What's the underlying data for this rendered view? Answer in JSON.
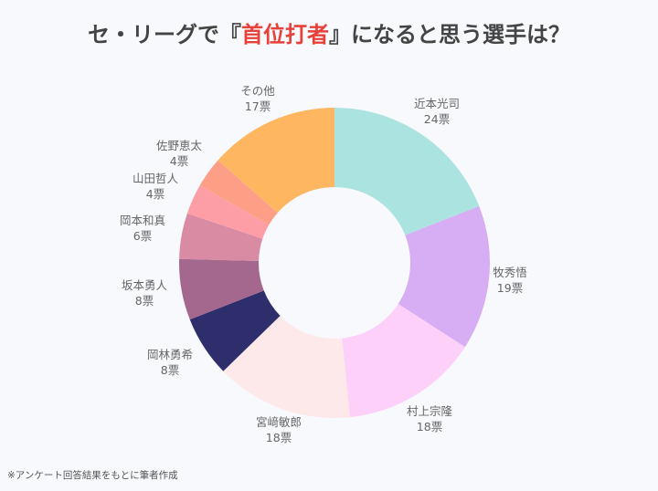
{
  "title": {
    "prefix": "セ・リーグで『",
    "highlight": "首位打者",
    "suffix": "』になると思う選手は？",
    "highlight_color": "#e8413a"
  },
  "chart_data": {
    "type": "pie",
    "donut": true,
    "start": "top, clockwise",
    "unit": "票",
    "slices": [
      {
        "label": "近本光司",
        "value": 24,
        "color": "#abe3e1"
      },
      {
        "label": "牧秀悟",
        "value": 19,
        "color": "#d7aef3"
      },
      {
        "label": "村上宗隆",
        "value": 18,
        "color": "#fdd0fa"
      },
      {
        "label": "宮﨑敏郎",
        "value": 18,
        "color": "#fde8ea"
      },
      {
        "label": "岡林勇希",
        "value": 8,
        "color": "#2d2e6b"
      },
      {
        "label": "坂本勇人",
        "value": 8,
        "color": "#a4688f"
      },
      {
        "label": "岡本和真",
        "value": 6,
        "color": "#d88ba3"
      },
      {
        "label": "山田哲人",
        "value": 4,
        "color": "#fd9ea7"
      },
      {
        "label": "佐野恵太",
        "value": 4,
        "color": "#fd9f86"
      },
      {
        "label": "その他",
        "value": 17,
        "color": "#feb661"
      }
    ]
  },
  "footnote": "※アンケート回答結果をもとに筆者作成"
}
